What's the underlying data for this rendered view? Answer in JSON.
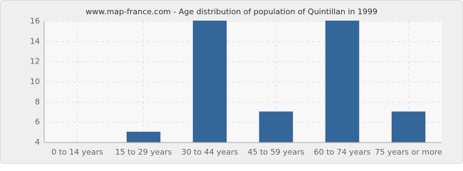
{
  "chart_data": {
    "type": "bar",
    "title": "www.map-france.com - Age distribution of population of Quintillan in 1999",
    "categories": [
      "0 to 14 years",
      "15 to 29 years",
      "30 to 44 years",
      "45 to 59 years",
      "60 to 74 years",
      "75 years or more"
    ],
    "values": [
      4,
      5,
      16,
      7,
      16,
      7
    ],
    "color": "#336699",
    "ylim": [
      4,
      16
    ],
    "yticks": [
      4,
      6,
      8,
      10,
      12,
      14,
      16
    ],
    "grid": true
  }
}
